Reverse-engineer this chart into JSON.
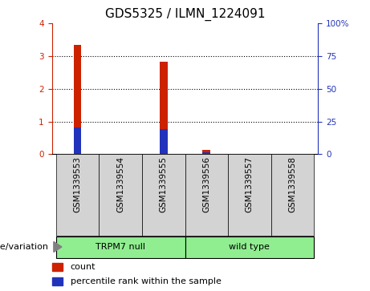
{
  "title": "GDS5325 / ILMN_1224091",
  "samples": [
    "GSM1339553",
    "GSM1339554",
    "GSM1339555",
    "GSM1339556",
    "GSM1339557",
    "GSM1339558"
  ],
  "counts": [
    3.35,
    0.02,
    2.82,
    0.13,
    0.02,
    0.02
  ],
  "percentile_ranks": [
    20.5,
    0.0,
    19.0,
    1.5,
    0.0,
    0.0
  ],
  "group_configs": [
    {
      "label": "TRPM7 null",
      "start": 0,
      "end": 2,
      "color": "#90EE90"
    },
    {
      "label": "wild type",
      "start": 3,
      "end": 5,
      "color": "#90EE90"
    }
  ],
  "bar_color_count": "#cc2200",
  "bar_color_percentile": "#2233bb",
  "bar_width": 0.18,
  "ylim_left": [
    0,
    4
  ],
  "ylim_right": [
    0,
    100
  ],
  "yticks_left": [
    0,
    1,
    2,
    3,
    4
  ],
  "yticks_right": [
    0,
    25,
    50,
    75,
    100
  ],
  "yticklabels_right": [
    "0",
    "25",
    "50",
    "75",
    "100%"
  ],
  "plot_bg_color": "#ffffff",
  "sample_bg_color": "#d3d3d3",
  "legend_count": "count",
  "legend_percentile": "percentile rank within the sample",
  "genotype_label": "genotype/variation",
  "grid_yticks": [
    1,
    2,
    3
  ],
  "title_fontsize": 11,
  "label_fontsize": 8,
  "tick_fontsize": 7.5
}
